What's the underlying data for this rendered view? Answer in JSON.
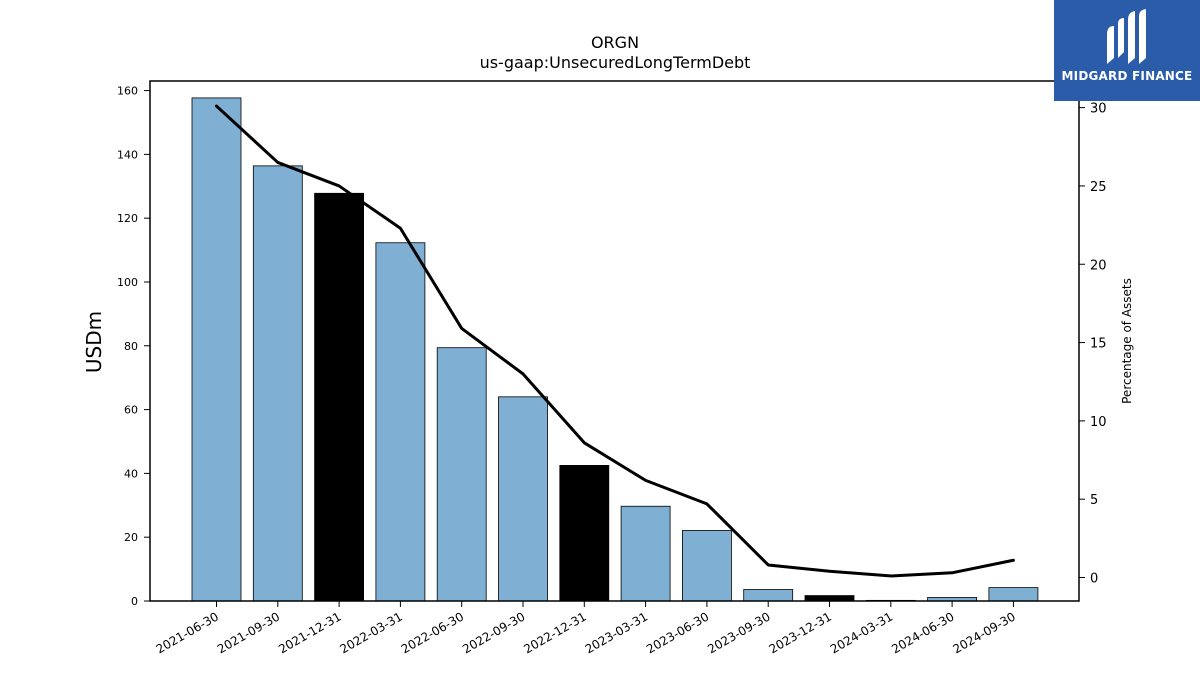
{
  "chart_data": {
    "type": "bar",
    "title": "ORGN",
    "subtitle": "us-gaap:UnsecuredLongTermDebt",
    "ylabel": "USDm",
    "y2label": "Percentage of Assets",
    "ylim": [
      0,
      163
    ],
    "y2lim": [
      -1.5,
      31.7
    ],
    "yticks": [
      0,
      20,
      40,
      60,
      80,
      100,
      120,
      140,
      160
    ],
    "y2ticks": [
      0,
      5,
      10,
      15,
      20,
      25,
      30
    ],
    "categories": [
      "2021-06-30",
      "2021-09-30",
      "2021-12-31",
      "2022-03-31",
      "2022-06-30",
      "2022-09-30",
      "2022-12-31",
      "2023-03-31",
      "2023-06-30",
      "2023-09-30",
      "2023-12-31",
      "2024-03-31",
      "2024-06-30",
      "2024-09-30"
    ],
    "series": [
      {
        "type": "bar",
        "values": [
          157.7,
          136.4,
          127.8,
          112.3,
          79.4,
          64.0,
          42.5,
          29.7,
          22.1,
          3.6,
          1.7,
          0.2,
          1.1,
          4.2
        ],
        "colors": [
          "#7fb0d4",
          "#7fb0d4",
          "#000000",
          "#7fb0d4",
          "#7fb0d4",
          "#7fb0d4",
          "#000000",
          "#7fb0d4",
          "#7fb0d4",
          "#7fb0d4",
          "#000000",
          "#7fb0d4",
          "#7fb0d4",
          "#7fb0d4"
        ]
      },
      {
        "type": "line",
        "axis": "right",
        "values": [
          30.1,
          26.5,
          25.0,
          22.3,
          15.9,
          13.0,
          8.6,
          6.2,
          4.7,
          0.8,
          0.4,
          0.1,
          0.3,
          1.1
        ],
        "color": "#000000"
      }
    ],
    "grid": false
  },
  "logo": {
    "text": "MIDGARD FINANCE",
    "background": "#2a5caa"
  }
}
